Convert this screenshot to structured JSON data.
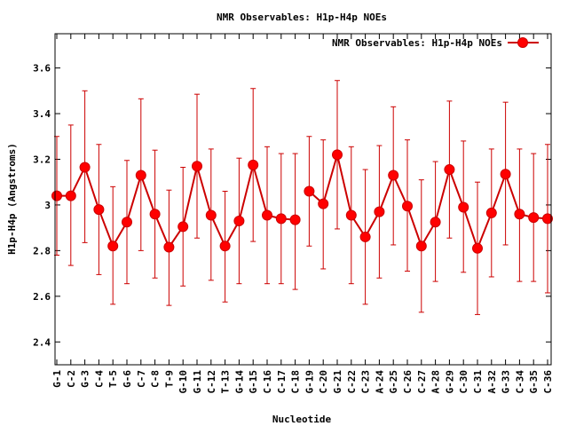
{
  "chart_data": {
    "type": "line",
    "title": "NMR Observables: H1p-H4p NOEs",
    "xlabel": "Nucleotide",
    "ylabel": "H1p-H4p (Angstroms)",
    "ylim": [
      2.3,
      3.75
    ],
    "yticks": [
      2.4,
      2.6,
      2.8,
      3,
      3.2,
      3.4,
      3.6
    ],
    "ytick_labels": [
      "2.4",
      "2.6",
      "2.8",
      "3",
      "3.2",
      "3.4",
      "3.6"
    ],
    "legend": {
      "label": "NMR Observables: H1p-H4p NOEs",
      "position": "top-right"
    },
    "series_color": "#ff0000",
    "errorbar_color": "#cc0000",
    "categories": [
      "G-1",
      "C-2",
      "G-3",
      "C-4",
      "T-5",
      "G-6",
      "C-7",
      "C-8",
      "T-9",
      "G-10",
      "G-11",
      "C-12",
      "T-13",
      "G-14",
      "G-15",
      "C-16",
      "C-17",
      "C-18",
      "G-19",
      "C-20",
      "G-21",
      "C-22",
      "C-23",
      "A-24",
      "G-25",
      "C-26",
      "C-27",
      "A-28",
      "G-29",
      "C-30",
      "C-31",
      "A-32",
      "G-33",
      "C-34",
      "G-35",
      "C-36"
    ],
    "segments": [
      [
        0,
        17
      ],
      [
        18,
        35
      ]
    ],
    "values": [
      3.04,
      3.04,
      3.165,
      2.98,
      2.82,
      2.925,
      3.13,
      2.96,
      2.815,
      2.905,
      3.17,
      2.955,
      2.82,
      2.93,
      3.175,
      2.955,
      2.94,
      2.935,
      3.06,
      3.005,
      3.22,
      2.955,
      2.86,
      2.97,
      3.13,
      2.995,
      2.82,
      2.925,
      3.155,
      2.99,
      2.81,
      2.965,
      3.135,
      2.96,
      2.945,
      2.94
    ],
    "err_high": [
      3.3,
      3.35,
      3.5,
      3.265,
      3.08,
      3.195,
      3.465,
      3.24,
      3.065,
      3.165,
      3.485,
      3.245,
      3.06,
      3.205,
      3.51,
      3.255,
      3.225,
      3.225,
      3.3,
      3.285,
      3.545,
      3.255,
      3.155,
      3.26,
      3.43,
      3.285,
      3.11,
      3.19,
      3.455,
      3.28,
      3.1,
      3.245,
      3.45,
      3.245,
      3.225,
      3.265
    ],
    "err_low": [
      2.78,
      2.735,
      2.835,
      2.695,
      2.565,
      2.655,
      2.8,
      2.68,
      2.56,
      2.645,
      2.855,
      2.67,
      2.575,
      2.655,
      2.84,
      2.655,
      2.655,
      2.63,
      2.82,
      2.72,
      2.895,
      2.655,
      2.565,
      2.68,
      2.825,
      2.71,
      2.53,
      2.665,
      2.855,
      2.705,
      2.52,
      2.685,
      2.825,
      2.665,
      2.665,
      2.615
    ]
  }
}
